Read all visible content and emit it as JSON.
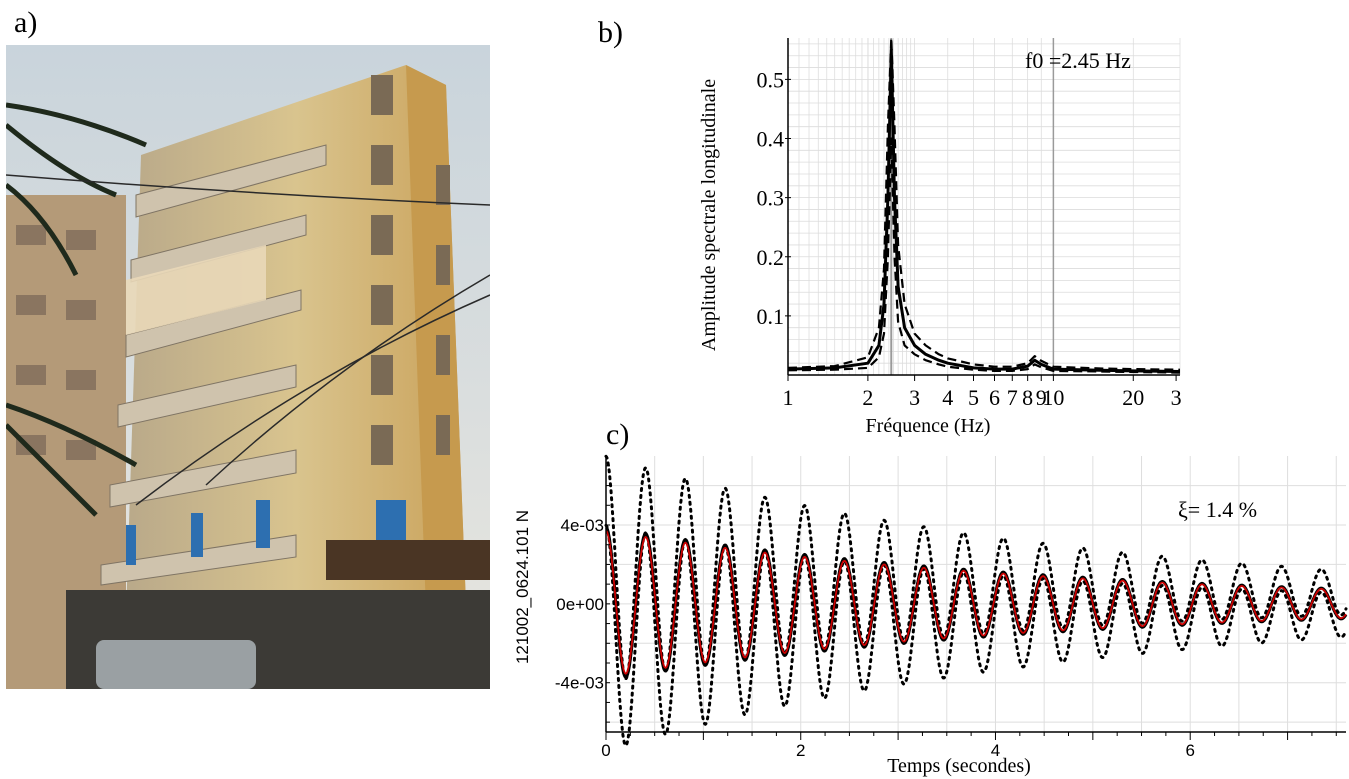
{
  "panels": {
    "a": "a)",
    "b": "b)",
    "c": "c)"
  },
  "photo": {
    "description_icon": "building-photo"
  },
  "spectrum": {
    "annotation": "f0 =2.45 Hz",
    "xlabel": "Fréquence (Hz)",
    "ylabel": "Amplitude spectrale longitudinale",
    "x_ticks": [
      "1",
      "2",
      "3",
      "4",
      "5",
      "6",
      "7",
      "8",
      "9",
      "10",
      "20",
      "3"
    ],
    "y_ticks": [
      "0.1",
      "0.2",
      "0.3",
      "0.4",
      "0.5"
    ]
  },
  "decay": {
    "annotation": "ξ= 1.4 %",
    "xlabel": "Temps (secondes)",
    "ylabel": "121002_0624.101 N",
    "x_ticks": [
      "0",
      "2",
      "4",
      "6"
    ],
    "y_ticks": [
      "4e-03",
      "0e+00",
      "-4e-03"
    ]
  },
  "chart_data": [
    {
      "type": "line",
      "xscale": "log",
      "xlim": [
        1,
        30
      ],
      "ylim": [
        0,
        0.57
      ],
      "grid": true,
      "xlabel": "Fréquence (Hz)",
      "ylabel": "Amplitude spectrale longitudinale",
      "peak_frequency": 2.45,
      "series": [
        {
          "style": "solid",
          "x": [
            1,
            1.5,
            2,
            2.2,
            2.3,
            2.38,
            2.45,
            2.52,
            2.6,
            2.75,
            3,
            3.3,
            3.7,
            4,
            5,
            6,
            7,
            8,
            8.5,
            9,
            10,
            15,
            20,
            30
          ],
          "values": [
            0.01,
            0.012,
            0.02,
            0.05,
            0.12,
            0.3,
            0.55,
            0.3,
            0.15,
            0.08,
            0.05,
            0.035,
            0.025,
            0.02,
            0.012,
            0.01,
            0.01,
            0.015,
            0.025,
            0.018,
            0.01,
            0.008,
            0.007,
            0.006
          ]
        },
        {
          "style": "dashed",
          "x": [
            1,
            1.5,
            2,
            2.2,
            2.3,
            2.38,
            2.45,
            2.52,
            2.6,
            2.75,
            3,
            3.3,
            3.7,
            4,
            5,
            6,
            7,
            8,
            8.5,
            9,
            10,
            15,
            20,
            30
          ],
          "values": [
            0.012,
            0.015,
            0.03,
            0.08,
            0.18,
            0.42,
            0.57,
            0.42,
            0.22,
            0.12,
            0.07,
            0.05,
            0.035,
            0.028,
            0.018,
            0.014,
            0.014,
            0.02,
            0.032,
            0.024,
            0.014,
            0.011,
            0.01,
            0.009
          ]
        },
        {
          "style": "dashed",
          "x": [
            1,
            1.5,
            2,
            2.2,
            2.3,
            2.38,
            2.45,
            2.52,
            2.6,
            2.75,
            3,
            3.3,
            3.7,
            4,
            5,
            6,
            7,
            8,
            8.5,
            9,
            10,
            15,
            20,
            30
          ],
          "values": [
            0.008,
            0.009,
            0.012,
            0.03,
            0.07,
            0.2,
            0.4,
            0.2,
            0.09,
            0.05,
            0.035,
            0.025,
            0.018,
            0.014,
            0.009,
            0.007,
            0.007,
            0.01,
            0.018,
            0.013,
            0.007,
            0.006,
            0.005,
            0.004
          ]
        }
      ]
    },
    {
      "type": "line",
      "xlim": [
        0,
        7.6
      ],
      "ylim": [
        -0.0065,
        0.0075
      ],
      "grid": true,
      "xlabel": "Temps (secondes)",
      "ylabel": "121002_0624.101 N",
      "damping_percent": 1.4,
      "frequency_hz": 2.45,
      "initial_amplitude": 0.0037,
      "envelope_offset": 0.0025,
      "series": [
        {
          "name": "signal",
          "style": "solid",
          "color": "#000000"
        },
        {
          "name": "fit",
          "style": "solid",
          "color": "#cc0000"
        },
        {
          "name": "upper bound",
          "style": "dotted",
          "color": "#000000"
        },
        {
          "name": "lower bound",
          "style": "dotted",
          "color": "#000000"
        }
      ]
    }
  ]
}
